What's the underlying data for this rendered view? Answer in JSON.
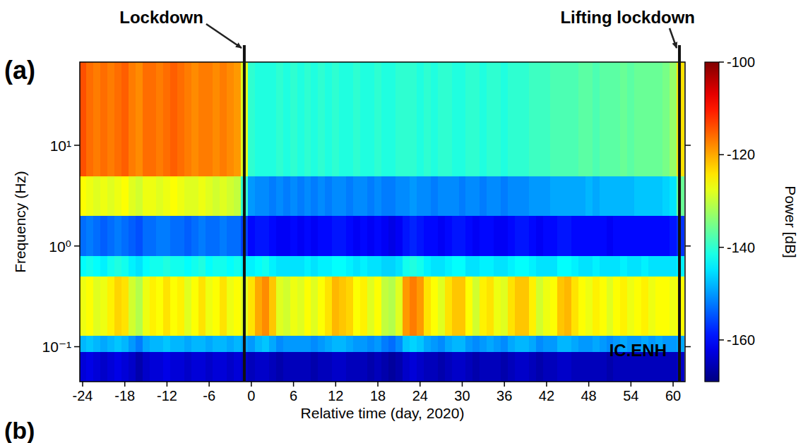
{
  "chart_data": {
    "type": "heatmap",
    "panel_labels": [
      "(a)",
      "(b)"
    ],
    "xlabel": "Relative time (day, 2020)",
    "ylabel": "Frequency (Hz)",
    "station": "IC.ENH",
    "log": "y",
    "xlim": [
      -24.4,
      61.7
    ],
    "xticks": [
      -24,
      -18,
      -12,
      -6,
      0,
      6,
      12,
      18,
      24,
      30,
      36,
      42,
      48,
      54,
      60
    ],
    "ylim": [
      0.045,
      67
    ],
    "yticks": [
      {
        "value": 0.1,
        "label": "10⁻¹"
      },
      {
        "value": 1,
        "label": "10⁰"
      },
      {
        "value": 10,
        "label": "10¹"
      }
    ],
    "annotations": [
      {
        "text": "Lockdown",
        "x": -1
      },
      {
        "text": "Lifting lockdown",
        "x": 60.9
      }
    ],
    "colorbar": {
      "label": "Power [dB]",
      "range": [
        -169,
        -100
      ],
      "ticks": [
        -160,
        -140,
        -120,
        -100
      ]
    },
    "y_edges": [
      0.045,
      0.09,
      0.13,
      0.5,
      0.8,
      2,
      5,
      67
    ],
    "x": [
      -24,
      -23,
      -22,
      -21,
      -20,
      -19,
      -18,
      -17,
      -16,
      -15,
      -14,
      -13,
      -12,
      -11,
      -10,
      -9,
      -8,
      -7,
      -6,
      -5,
      -4,
      -3,
      -2,
      -1,
      0,
      1,
      2,
      3,
      4,
      5,
      6,
      7,
      8,
      9,
      10,
      11,
      12,
      13,
      14,
      15,
      16,
      17,
      18,
      19,
      20,
      21,
      22,
      23,
      24,
      25,
      26,
      27,
      28,
      29,
      30,
      31,
      32,
      33,
      34,
      35,
      36,
      37,
      38,
      39,
      40,
      41,
      42,
      43,
      44,
      45,
      46,
      47,
      48,
      49,
      50,
      51,
      52,
      53,
      54,
      55,
      56,
      57,
      58,
      59,
      60,
      61
    ],
    "z": [
      [
        -163,
        -148,
        -127,
        -143,
        -153,
        -126,
        -114
      ],
      [
        -162,
        -147,
        -126,
        -142,
        -152,
        -127,
        -116
      ],
      [
        -163,
        -148,
        -128,
        -143,
        -153,
        -128,
        -117
      ],
      [
        -164,
        -149,
        -127,
        -144,
        -154,
        -127,
        -116
      ],
      [
        -163,
        -148,
        -125,
        -142,
        -153,
        -128,
        -117
      ],
      [
        -162,
        -147,
        -123,
        -141,
        -152,
        -127,
        -116
      ],
      [
        -163,
        -148,
        -124,
        -142,
        -153,
        -126,
        -115
      ],
      [
        -164,
        -150,
        -129,
        -144,
        -154,
        -128,
        -117
      ],
      [
        -166,
        -152,
        -131,
        -145,
        -155,
        -129,
        -118
      ],
      [
        -164,
        -149,
        -127,
        -143,
        -153,
        -127,
        -116
      ],
      [
        -163,
        -148,
        -125,
        -142,
        -153,
        -127,
        -116
      ],
      [
        -163,
        -148,
        -126,
        -142,
        -152,
        -128,
        -117
      ],
      [
        -162,
        -147,
        -124,
        -141,
        -152,
        -127,
        -116
      ],
      [
        -163,
        -148,
        -126,
        -142,
        -153,
        -126,
        -115
      ],
      [
        -163,
        -148,
        -125,
        -142,
        -153,
        -127,
        -116
      ],
      [
        -164,
        -149,
        -128,
        -143,
        -154,
        -128,
        -117
      ],
      [
        -163,
        -148,
        -126,
        -142,
        -153,
        -128,
        -118
      ],
      [
        -163,
        -148,
        -124,
        -141,
        -152,
        -127,
        -117
      ],
      [
        -164,
        -149,
        -127,
        -143,
        -153,
        -128,
        -117
      ],
      [
        -163,
        -148,
        -126,
        -142,
        -153,
        -129,
        -118
      ],
      [
        -163,
        -148,
        -124,
        -142,
        -152,
        -128,
        -117
      ],
      [
        -164,
        -149,
        -127,
        -143,
        -153,
        -129,
        -118
      ],
      [
        -163,
        -148,
        -126,
        -142,
        -153,
        -130,
        -119
      ],
      [
        -164,
        -149,
        -128,
        -144,
        -156,
        -140,
        -128
      ],
      [
        -165,
        -150,
        -124,
        -144,
        -160,
        -150,
        -140
      ],
      [
        -164,
        -148,
        -120,
        -143,
        -159,
        -151,
        -141
      ],
      [
        -164,
        -147,
        -118,
        -142,
        -159,
        -151,
        -141
      ],
      [
        -165,
        -149,
        -122,
        -144,
        -160,
        -152,
        -141
      ],
      [
        -166,
        -151,
        -128,
        -145,
        -161,
        -151,
        -140
      ],
      [
        -165,
        -150,
        -129,
        -145,
        -161,
        -152,
        -141
      ],
      [
        -165,
        -150,
        -127,
        -145,
        -160,
        -151,
        -140
      ],
      [
        -165,
        -150,
        -128,
        -145,
        -161,
        -152,
        -141
      ],
      [
        -165,
        -150,
        -126,
        -144,
        -160,
        -151,
        -140
      ],
      [
        -166,
        -151,
        -128,
        -145,
        -161,
        -152,
        -141
      ],
      [
        -165,
        -150,
        -126,
        -144,
        -160,
        -151,
        -140
      ],
      [
        -165,
        -149,
        -124,
        -144,
        -160,
        -152,
        -141
      ],
      [
        -164,
        -148,
        -121,
        -143,
        -159,
        -151,
        -140
      ],
      [
        -164,
        -148,
        -122,
        -143,
        -159,
        -151,
        -141
      ],
      [
        -165,
        -149,
        -123,
        -144,
        -160,
        -152,
        -141
      ],
      [
        -165,
        -150,
        -126,
        -145,
        -161,
        -151,
        -140
      ],
      [
        -165,
        -150,
        -125,
        -144,
        -160,
        -151,
        -141
      ],
      [
        -166,
        -151,
        -128,
        -145,
        -161,
        -152,
        -141
      ],
      [
        -165,
        -150,
        -126,
        -145,
        -160,
        -151,
        -140
      ],
      [
        -166,
        -152,
        -130,
        -146,
        -161,
        -152,
        -141
      ],
      [
        -167,
        -153,
        -131,
        -146,
        -162,
        -152,
        -141
      ],
      [
        -166,
        -151,
        -128,
        -145,
        -161,
        -151,
        -140
      ],
      [
        -164,
        -147,
        -119,
        -142,
        -159,
        -151,
        -140
      ],
      [
        -163,
        -146,
        -117,
        -141,
        -158,
        -150,
        -140
      ],
      [
        -164,
        -147,
        -119,
        -142,
        -159,
        -151,
        -141
      ],
      [
        -165,
        -149,
        -124,
        -144,
        -160,
        -151,
        -140
      ],
      [
        -165,
        -150,
        -126,
        -145,
        -160,
        -152,
        -141
      ],
      [
        -166,
        -151,
        -128,
        -145,
        -161,
        -151,
        -140
      ],
      [
        -165,
        -149,
        -124,
        -144,
        -160,
        -151,
        -140
      ],
      [
        -164,
        -148,
        -122,
        -143,
        -159,
        -151,
        -141
      ],
      [
        -164,
        -148,
        -122,
        -143,
        -159,
        -152,
        -141
      ],
      [
        -165,
        -150,
        -126,
        -145,
        -160,
        -151,
        -140
      ],
      [
        -166,
        -151,
        -129,
        -145,
        -161,
        -151,
        -140
      ],
      [
        -165,
        -150,
        -125,
        -144,
        -160,
        -152,
        -141
      ],
      [
        -165,
        -149,
        -124,
        -144,
        -160,
        -151,
        -140
      ],
      [
        -165,
        -150,
        -127,
        -145,
        -161,
        -151,
        -140
      ],
      [
        -166,
        -151,
        -128,
        -145,
        -161,
        -152,
        -141
      ],
      [
        -165,
        -149,
        -124,
        -144,
        -160,
        -151,
        -140
      ],
      [
        -164,
        -148,
        -122,
        -143,
        -159,
        -151,
        -140
      ],
      [
        -164,
        -148,
        -122,
        -143,
        -159,
        -151,
        -140
      ],
      [
        -165,
        -149,
        -125,
        -144,
        -160,
        -150,
        -139
      ],
      [
        -166,
        -151,
        -129,
        -145,
        -161,
        -150,
        -139
      ],
      [
        -165,
        -150,
        -127,
        -145,
        -160,
        -150,
        -139
      ],
      [
        -165,
        -150,
        -126,
        -145,
        -160,
        -149,
        -138
      ],
      [
        -164,
        -148,
        -122,
        -143,
        -159,
        -149,
        -138
      ],
      [
        -164,
        -148,
        -121,
        -143,
        -159,
        -149,
        -138
      ],
      [
        -165,
        -149,
        -124,
        -144,
        -160,
        -149,
        -138
      ],
      [
        -165,
        -150,
        -126,
        -145,
        -160,
        -149,
        -137
      ],
      [
        -165,
        -150,
        -127,
        -145,
        -160,
        -148,
        -137
      ],
      [
        -165,
        -149,
        -125,
        -144,
        -160,
        -149,
        -138
      ],
      [
        -165,
        -150,
        -126,
        -145,
        -160,
        -148,
        -137
      ],
      [
        -166,
        -151,
        -128,
        -145,
        -161,
        -148,
        -137
      ],
      [
        -165,
        -150,
        -126,
        -145,
        -160,
        -148,
        -137
      ],
      [
        -165,
        -149,
        -125,
        -144,
        -160,
        -148,
        -136
      ],
      [
        -165,
        -150,
        -127,
        -145,
        -160,
        -148,
        -137
      ],
      [
        -165,
        -150,
        -126,
        -145,
        -160,
        -147,
        -136
      ],
      [
        -165,
        -149,
        -125,
        -144,
        -160,
        -147,
        -136
      ],
      [
        -165,
        -150,
        -127,
        -145,
        -160,
        -147,
        -136
      ],
      [
        -165,
        -149,
        -126,
        -145,
        -160,
        -147,
        -136
      ],
      [
        -165,
        -150,
        -126,
        -145,
        -160,
        -146,
        -135
      ],
      [
        -165,
        -150,
        -127,
        -145,
        -159,
        -145,
        -133
      ],
      [
        -164,
        -149,
        -126,
        -144,
        -157,
        -136,
        -124
      ]
    ]
  }
}
